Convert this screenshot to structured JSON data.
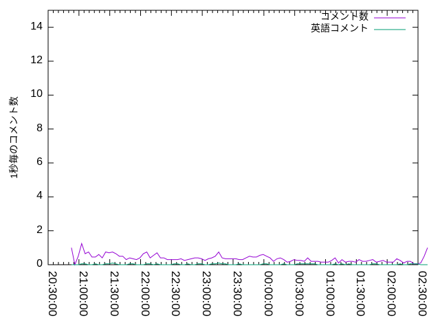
{
  "chart_data": {
    "type": "line",
    "title": "",
    "xlabel": "",
    "ylabel": "1秒毎のコメント数",
    "ylim": [
      0,
      15
    ],
    "yticks": [
      "0",
      "2",
      "4",
      "6",
      "8",
      "10",
      "12",
      "14"
    ],
    "xlim": [
      "20:30:00",
      "02:30:00"
    ],
    "xticks": [
      "20:30:00",
      "21:00:00",
      "21:30:00",
      "22:00:00",
      "22:30:00",
      "23:00:00",
      "23:30:00",
      "00:00:00",
      "00:30:00",
      "01:00:00",
      "01:30:00",
      "02:00:00",
      "02:30:00"
    ],
    "grid": false,
    "legend_position": "top-right",
    "series": [
      {
        "name": "コメント数",
        "color": "#9400d3",
        "values": [
          1.0,
          0,
          0.5,
          1.25,
          0.65,
          0.75,
          0.45,
          0.45,
          0.6,
          0.4,
          0.75,
          0.7,
          0.75,
          0.65,
          0.5,
          0.5,
          0.3,
          0.4,
          0.35,
          0.3,
          0.4,
          0.65,
          0.75,
          0.4,
          0.55,
          0.7,
          0.4,
          0.4,
          0.3,
          0.3,
          0.3,
          0.3,
          0.35,
          0.25,
          0.3,
          0.35,
          0.4,
          0.4,
          0.35,
          0.25,
          0.35,
          0.4,
          0.5,
          0.75,
          0.4,
          0.35,
          0.35,
          0.35,
          0.35,
          0.3,
          0.3,
          0.4,
          0.5,
          0.45,
          0.45,
          0.55,
          0.6,
          0.5,
          0.4,
          0.2,
          0.35,
          0.4,
          0.3,
          0.15,
          0.2,
          0.3,
          0.25,
          0.25,
          0.2,
          0.4,
          0.2,
          0.2,
          0.2,
          0.15,
          0.15,
          0.15,
          0.25,
          0.4,
          0.1,
          0.3,
          0.15,
          0.2,
          0.2,
          0.15,
          0.3,
          0.2,
          0.2,
          0.25,
          0.3,
          0.15,
          0.2,
          0.25,
          0.15,
          0.15,
          0.15,
          0.35,
          0.25,
          0.1,
          0.2,
          0.2,
          0.05,
          0.05,
          0.1,
          0.5,
          1.0
        ]
      },
      {
        "name": "英語コメント",
        "color": "#009e73",
        "values": [
          0,
          0,
          0,
          0.05,
          0.05,
          0,
          0,
          0.05,
          0,
          0,
          0.05,
          0.05,
          0.1,
          0.05,
          0,
          0,
          0,
          0.05,
          0.05,
          0,
          0,
          0,
          0.05,
          0.05,
          0,
          0.05,
          0,
          0,
          0,
          0,
          0.05,
          0.05,
          0,
          0,
          0.05,
          0,
          0,
          0.05,
          0.05,
          0,
          0,
          0.05,
          0.05,
          0.1,
          0.05,
          0.05,
          0,
          0,
          0,
          0.05,
          0,
          0,
          0,
          0,
          0,
          0,
          0.05,
          0.05,
          0,
          0,
          0,
          0,
          0.05,
          0,
          0,
          0,
          0.05,
          0.05,
          0.05,
          0.05,
          0.05,
          0.05,
          0,
          0,
          0,
          0,
          0,
          0.05,
          0,
          0.05,
          0,
          0.05,
          0,
          0,
          0,
          0,
          0,
          0,
          0.05,
          0.05,
          0,
          0,
          0,
          0,
          0,
          0,
          0.05,
          0,
          0,
          0.05,
          0.05,
          0.05,
          0,
          0,
          0
        ]
      }
    ]
  }
}
